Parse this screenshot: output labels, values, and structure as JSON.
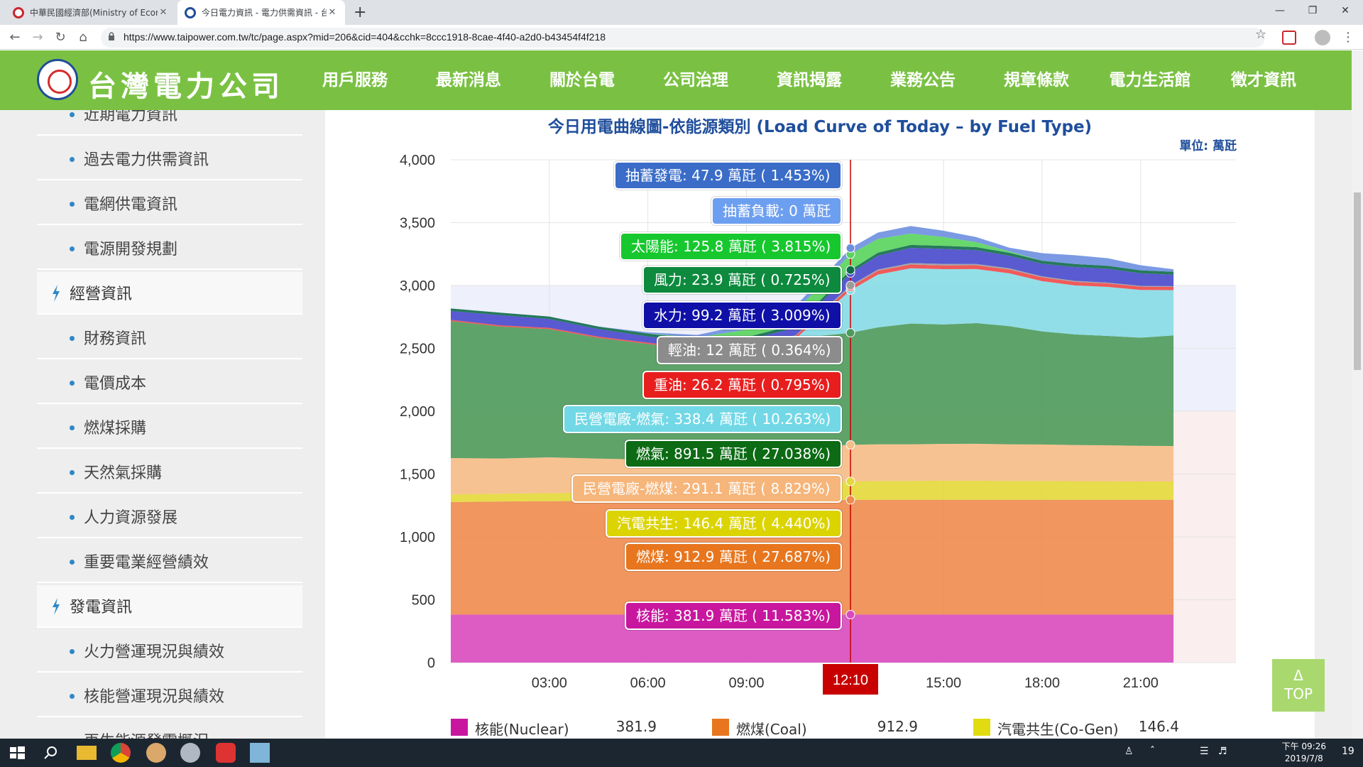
{
  "browser": {
    "tabs": [
      {
        "title": "中華民國經濟部(Ministry of Econ",
        "close": "✕"
      },
      {
        "title": "今日電力資訊 - 電力供需資訊 - 台",
        "close": "✕"
      }
    ],
    "new_tab": "+",
    "url": "https://www.taipower.com.tw/tc/page.aspx?mid=206&cid=404&cchk=8ccc1918-8cae-4f40-a2d0-b43454f4f218"
  },
  "site": {
    "logo_text": "台灣電力公司",
    "nav": [
      "用戶服務",
      "最新消息",
      "關於台電",
      "公司治理",
      "資訊揭露",
      "業務公告",
      "規章條款",
      "電力生活館",
      "徵才資訊"
    ],
    "active_nav": "資訊揭露"
  },
  "sidebar": {
    "items": [
      {
        "label": "近期電力資訊",
        "type": "sub"
      },
      {
        "label": "過去電力供需資訊",
        "type": "sub"
      },
      {
        "label": "電網供電資訊",
        "type": "sub"
      },
      {
        "label": "電源開發規劃",
        "type": "sub"
      },
      {
        "label": "經營資訊",
        "type": "cat"
      },
      {
        "label": "財務資訊",
        "type": "sub"
      },
      {
        "label": "電價成本",
        "type": "sub"
      },
      {
        "label": "燃煤採購",
        "type": "sub"
      },
      {
        "label": "天然氣採購",
        "type": "sub"
      },
      {
        "label": "人力資源發展",
        "type": "sub"
      },
      {
        "label": "重要電業經營績效",
        "type": "sub"
      },
      {
        "label": "發電資訊",
        "type": "cat"
      },
      {
        "label": "火力營運現況與績效",
        "type": "sub"
      },
      {
        "label": "核能營運現況與績效",
        "type": "sub"
      },
      {
        "label": "再生能源發電概況",
        "type": "sub"
      }
    ]
  },
  "chart_data": {
    "type": "area",
    "title": "今日用電曲線圖-依能源類別 (Load Curve of Today – by Fuel Type)",
    "unit": "單位: 萬瓩",
    "ylim": [
      0,
      4000
    ],
    "yticks": [
      "0",
      "500",
      "1,000",
      "1,500",
      "2,000",
      "2,500",
      "3,000",
      "3,500",
      "4,000"
    ],
    "xticks": [
      "03:00",
      "06:00",
      "09:00",
      "12:10",
      "15:00",
      "18:00",
      "21:00"
    ],
    "x_hours": [
      0,
      1.5,
      3,
      4.5,
      6,
      7.5,
      9,
      10.5,
      12.1667,
      13,
      14,
      15,
      16,
      17,
      18,
      19,
      20,
      21,
      22
    ],
    "current_time": "12:10",
    "current_hour": 12.1667,
    "data_end_hour": 22,
    "grid": true,
    "series": [
      {
        "name": "核能(Nuclear)",
        "color": "#d84bbf",
        "values": [
          381.9,
          381.9,
          381.9,
          381.9,
          381.9,
          381.9,
          381.9,
          381.9,
          381.9,
          381.9,
          381.9,
          381.9,
          381.9,
          381.9,
          381.9,
          381.9,
          381.9,
          381.9,
          381.9
        ]
      },
      {
        "name": "燃煤(Coal)",
        "color": "#ee8c4e",
        "values": [
          895,
          900,
          902,
          905,
          905,
          908,
          910,
          912,
          912.9,
          913,
          913,
          913,
          913,
          913,
          913,
          913,
          913,
          913,
          913
        ]
      },
      {
        "name": "汽電共生(Co-Gen)",
        "color": "#e3d93a",
        "values": [
          60,
          62,
          64,
          66,
          68,
          80,
          110,
          130,
          146.4,
          150,
          150,
          152,
          152,
          150,
          150,
          148,
          148,
          146,
          146
        ]
      },
      {
        "name": "民營電廠-燃煤",
        "color": "#f6bd86",
        "values": [
          290,
          280,
          285,
          270,
          260,
          270,
          280,
          285,
          291.1,
          292,
          292,
          293,
          294,
          292,
          290,
          288,
          286,
          284,
          282
        ]
      },
      {
        "name": "燃氣",
        "color": "#4e9a5a",
        "values": [
          1090,
          1050,
          1020,
          960,
          920,
          850,
          820,
          870,
          891.5,
          930,
          960,
          950,
          960,
          940,
          900,
          880,
          870,
          860,
          880
        ]
      },
      {
        "name": "民營電廠-燃氣",
        "color": "#86dce6",
        "values": [
          0,
          0,
          0,
          0,
          0,
          0,
          0,
          0,
          338.4,
          420,
          440,
          440,
          430,
          420,
          400,
          390,
          390,
          380,
          360
        ]
      },
      {
        "name": "重油",
        "color": "#f04848",
        "values": [
          10,
          10,
          10,
          10,
          10,
          10,
          12,
          20,
          26.2,
          30,
          30,
          30,
          30,
          30,
          30,
          28,
          28,
          26,
          26
        ]
      },
      {
        "name": "輕油",
        "color": "#9a9a9a",
        "values": [
          0,
          0,
          0,
          0,
          0,
          0,
          2,
          6,
          12,
          10,
          12,
          12,
          10,
          10,
          8,
          8,
          6,
          6,
          6
        ]
      },
      {
        "name": "水力",
        "color": "#4848cc",
        "values": [
          70,
          80,
          70,
          60,
          50,
          50,
          50,
          60,
          99.2,
          110,
          120,
          120,
          110,
          100,
          100,
          110,
          110,
          100,
          90
        ]
      },
      {
        "name": "風力",
        "color": "#0e6b4a",
        "values": [
          20,
          20,
          20,
          20,
          22,
          22,
          23,
          23,
          23.9,
          24,
          24,
          24,
          24,
          24,
          24,
          24,
          24,
          24,
          24
        ]
      },
      {
        "name": "太陽能",
        "color": "#58d35c",
        "values": [
          0,
          0,
          0,
          0,
          0,
          15,
          60,
          110,
          125.8,
          110,
          90,
          70,
          40,
          10,
          0,
          0,
          0,
          0,
          0
        ]
      },
      {
        "name": "抽蓄發電",
        "color": "#6d8fe0",
        "values": [
          0,
          0,
          0,
          0,
          10,
          20,
          40,
          40,
          47.9,
          50,
          60,
          50,
          40,
          30,
          60,
          70,
          60,
          40,
          20
        ]
      }
    ]
  },
  "tooltips": [
    {
      "text": "抽蓄發電: 47.9 萬瓩 ( 1.453%)",
      "color": "#3a6cc8",
      "y": 3877
    },
    {
      "text": "抽蓄負載: 0 萬瓩",
      "color": "#6d9ff0",
      "y": 3596
    },
    {
      "text": "太陽能: 125.8 萬瓩 ( 3.815%)",
      "color": "#16c82e",
      "y": 3313
    },
    {
      "text": "風力: 23.9 萬瓩 ( 0.725%)",
      "color": "#0d8a3e",
      "y": 3044
    },
    {
      "text": "水力: 99.2 萬瓩 ( 3.009%)",
      "color": "#1010a8",
      "y": 2760
    },
    {
      "text": "輕油: 12 萬瓩 ( 0.364%)",
      "color": "#8c8c8c",
      "y": 2487
    },
    {
      "text": "重油: 26.2 萬瓩 ( 0.795%)",
      "color": "#e81e1e",
      "y": 2210
    },
    {
      "text": "民營電廠-燃氣: 338.4 萬瓩 ( 10.263%)",
      "color": "#72d8e6",
      "y": 1936
    },
    {
      "text": "燃氣: 891.5 萬瓩 ( 27.038%)",
      "color": "#0c6b14",
      "y": 1659
    },
    {
      "text": "民營電廠-燃煤: 291.1 萬瓩 ( 8.829%)",
      "color": "#f6b57a",
      "y": 1383
    },
    {
      "text": "汽電共生: 146.4 萬瓩 ( 4.440%)",
      "color": "#dcd400",
      "y": 1107
    },
    {
      "text": "燃煤: 912.9 萬瓩 ( 27.687%)",
      "color": "#e8761e",
      "y": 840
    },
    {
      "text": "核能: 381.9 萬瓩 ( 11.583%)",
      "color": "#c8179e",
      "y": 375
    }
  ],
  "legend": [
    {
      "label": "核能(Nuclear)",
      "value": "381.9",
      "color": "#c8179e"
    },
    {
      "label": "燃煤(Coal)",
      "value": "912.9",
      "color": "#e8761e"
    },
    {
      "label": "汽電共生(Co-Gen)",
      "value": "146.4",
      "color": "#e0dc10"
    }
  ],
  "totop": {
    "arrow": "Δ",
    "label": "TOP"
  },
  "taskbar": {
    "time": "下午 09:26",
    "date": "2019/7/8",
    "notif": "19"
  }
}
